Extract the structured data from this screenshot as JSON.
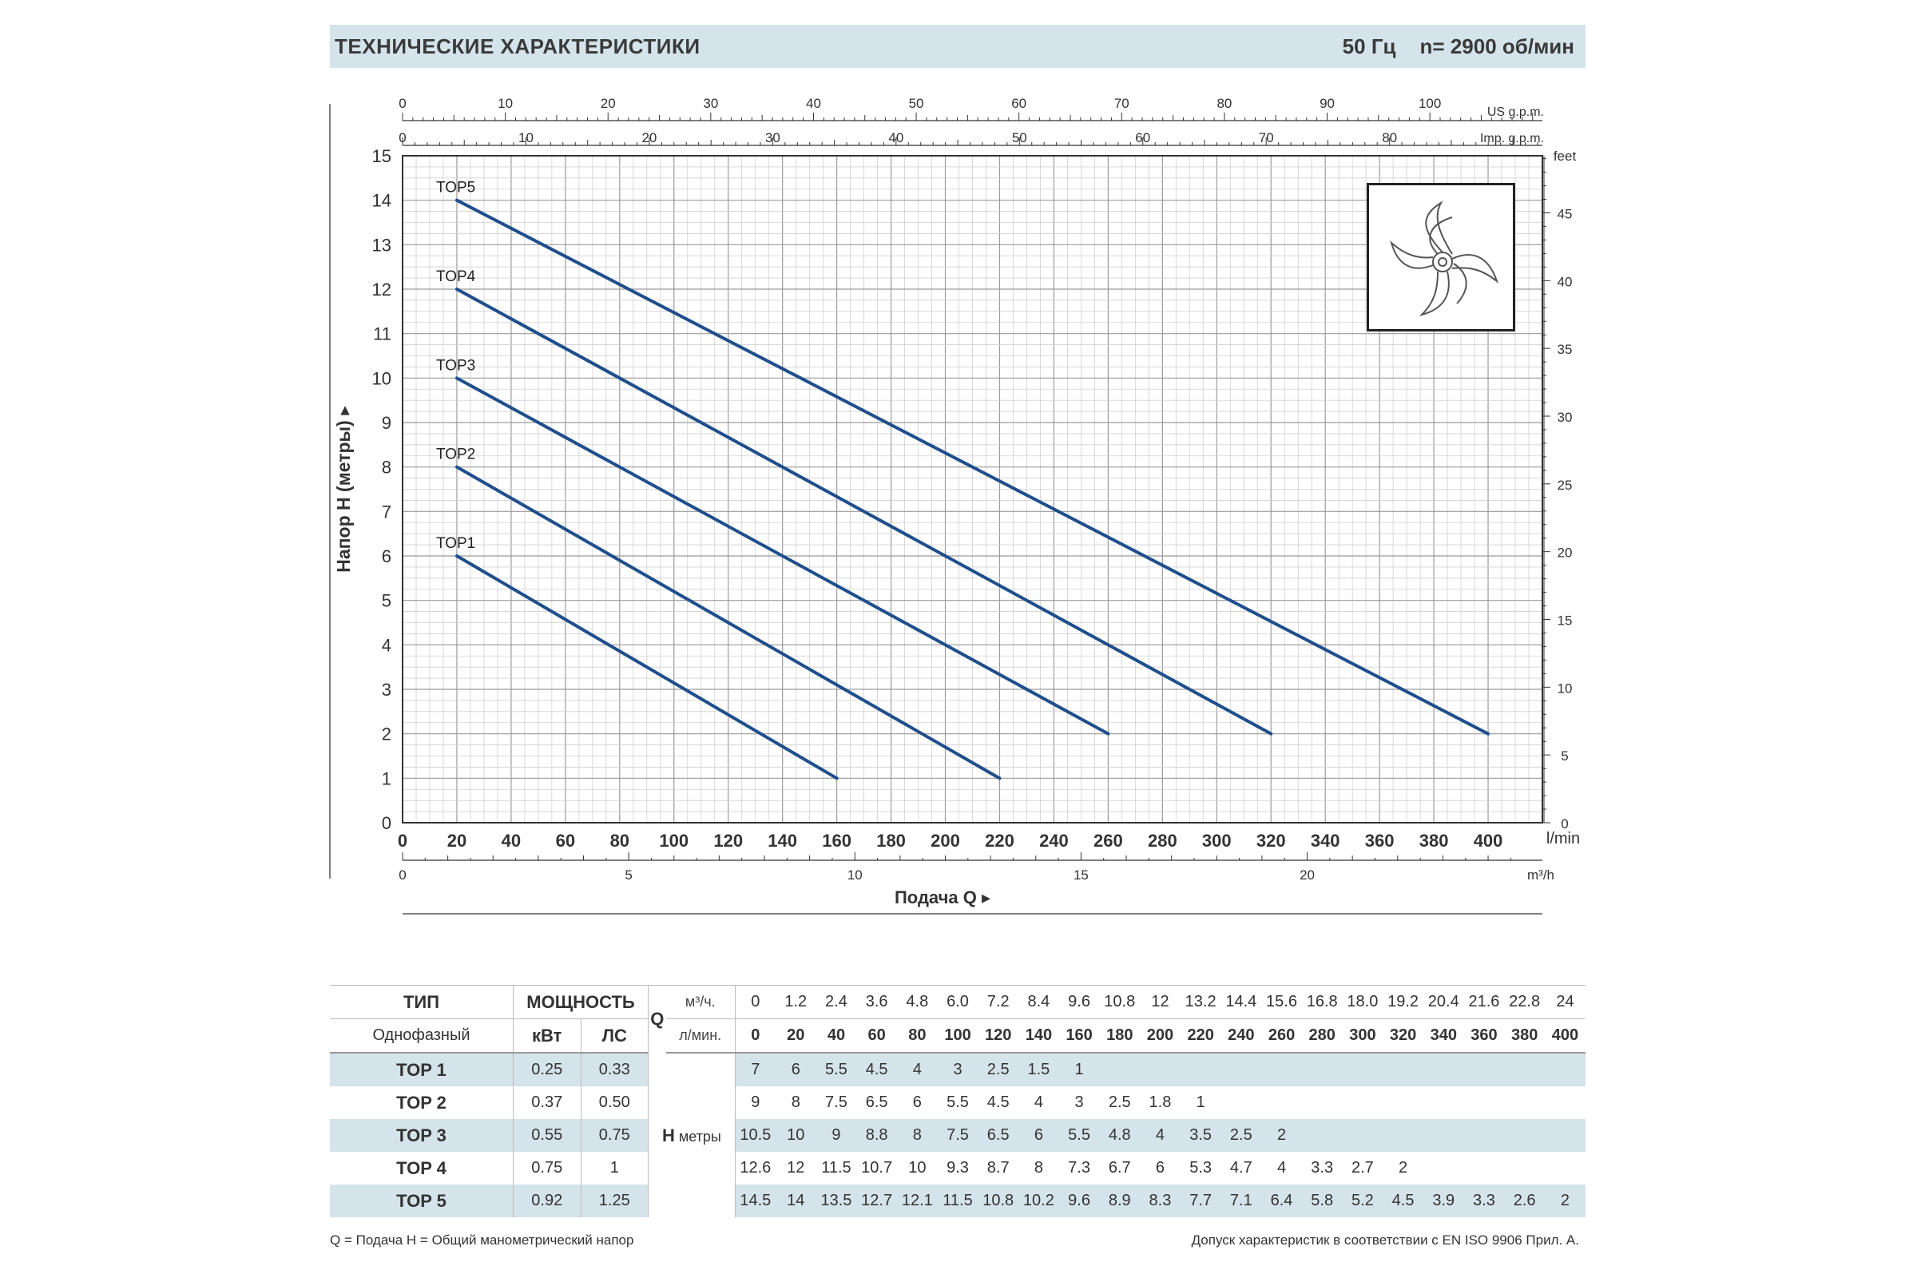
{
  "header": {
    "title": "ТЕХНИЧЕСКИЕ ХАРАКТЕРИСТИКИ",
    "freq": "50 Гц",
    "speed": "n= 2900 об/мин"
  },
  "chart_data": {
    "type": "line",
    "ylabel": "Напор H (метры)",
    "xlabel": "Подача Q",
    "xlim": [
      0,
      420
    ],
    "ylim": [
      0,
      15
    ],
    "x_unit": "l/min",
    "x_ticks": [
      0,
      20,
      40,
      60,
      80,
      100,
      120,
      140,
      160,
      180,
      200,
      220,
      240,
      260,
      280,
      300,
      320,
      340,
      360,
      380,
      400
    ],
    "y_ticks": [
      0,
      1,
      2,
      3,
      4,
      5,
      6,
      7,
      8,
      9,
      10,
      11,
      12,
      13,
      14,
      15
    ],
    "top_axis_us": {
      "unit": "US g.p.m.",
      "ticks": [
        0,
        10,
        20,
        30,
        40,
        50,
        60,
        70,
        80,
        90,
        100
      ]
    },
    "top_axis_imp": {
      "unit": "Imp. g.p.m.",
      "ticks": [
        0,
        10,
        20,
        30,
        40,
        50,
        60,
        70,
        80
      ]
    },
    "right_axis_feet": {
      "unit": "feet",
      "ticks": [
        0,
        5,
        10,
        15,
        20,
        25,
        30,
        35,
        40,
        45
      ]
    },
    "bottom_axis_m3h": {
      "unit": "m³/h",
      "ticks": [
        0,
        5,
        10,
        15,
        20
      ]
    },
    "grid": true,
    "series": [
      {
        "name": "TOP1",
        "points": [
          [
            20,
            6
          ],
          [
            160,
            1
          ]
        ]
      },
      {
        "name": "TOP2",
        "points": [
          [
            20,
            8
          ],
          [
            220,
            1
          ]
        ]
      },
      {
        "name": "TOP3",
        "points": [
          [
            20,
            10
          ],
          [
            260,
            2
          ]
        ]
      },
      {
        "name": "TOP4",
        "points": [
          [
            20,
            12
          ],
          [
            320,
            2
          ]
        ]
      },
      {
        "name": "TOP5",
        "points": [
          [
            20,
            14
          ],
          [
            400,
            2
          ]
        ]
      }
    ],
    "line_color": "#1f4e8c"
  },
  "table": {
    "type_header": "ТИП",
    "phase": "Однофазный",
    "power_header": "МОЩНОСТЬ",
    "kw": "кВт",
    "hp": "ЛС",
    "q_label": "Q",
    "m3h_unit": "м³/ч.",
    "lmin_unit": "л/мин.",
    "h_label": "H",
    "h_unit": "метры",
    "q_m3h": [
      "0",
      "1.2",
      "2.4",
      "3.6",
      "4.8",
      "6.0",
      "7.2",
      "8.4",
      "9.6",
      "10.8",
      "12",
      "13.2",
      "14.4",
      "15.6",
      "16.8",
      "18.0",
      "19.2",
      "20.4",
      "21.6",
      "22.8",
      "24"
    ],
    "q_lmin": [
      "0",
      "20",
      "40",
      "60",
      "80",
      "100",
      "120",
      "140",
      "160",
      "180",
      "200",
      "220",
      "240",
      "260",
      "280",
      "300",
      "320",
      "340",
      "360",
      "380",
      "400"
    ],
    "rows": [
      {
        "model": "TOP 1",
        "kw": "0.25",
        "hp": "0.33",
        "h": [
          "7",
          "6",
          "5.5",
          "4.5",
          "4",
          "3",
          "2.5",
          "1.5",
          "1",
          "",
          "",
          "",
          "",
          "",
          "",
          "",
          "",
          "",
          "",
          "",
          ""
        ]
      },
      {
        "model": "TOP 2",
        "kw": "0.37",
        "hp": "0.50",
        "h": [
          "9",
          "8",
          "7.5",
          "6.5",
          "6",
          "5.5",
          "4.5",
          "4",
          "3",
          "2.5",
          "1.8",
          "1",
          "",
          "",
          "",
          "",
          "",
          "",
          "",
          "",
          ""
        ]
      },
      {
        "model": "TOP 3",
        "kw": "0.55",
        "hp": "0.75",
        "h": [
          "10.5",
          "10",
          "9",
          "8.8",
          "8",
          "7.5",
          "6.5",
          "6",
          "5.5",
          "4.8",
          "4",
          "3.5",
          "2.5",
          "2",
          "",
          "",
          "",
          "",
          "",
          "",
          ""
        ]
      },
      {
        "model": "TOP 4",
        "kw": "0.75",
        "hp": "1",
        "h": [
          "12.6",
          "12",
          "11.5",
          "10.7",
          "10",
          "9.3",
          "8.7",
          "8",
          "7.3",
          "6.7",
          "6",
          "5.3",
          "4.7",
          "4",
          "3.3",
          "2.7",
          "2",
          "",
          "",
          "",
          ""
        ]
      },
      {
        "model": "TOP 5",
        "kw": "0.92",
        "hp": "1.25",
        "h": [
          "14.5",
          "14",
          "13.5",
          "12.7",
          "12.1",
          "11.5",
          "10.8",
          "10.2",
          "9.6",
          "8.9",
          "8.3",
          "7.7",
          "7.1",
          "6.4",
          "5.8",
          "5.2",
          "4.5",
          "3.9",
          "3.3",
          "2.6",
          "2"
        ]
      }
    ]
  },
  "footnotes": {
    "left": "Q = Подача   H = Общий манометрический напор",
    "right": "Допуск характеристик в соответствии с EN ISO 9906 Прил. A."
  }
}
